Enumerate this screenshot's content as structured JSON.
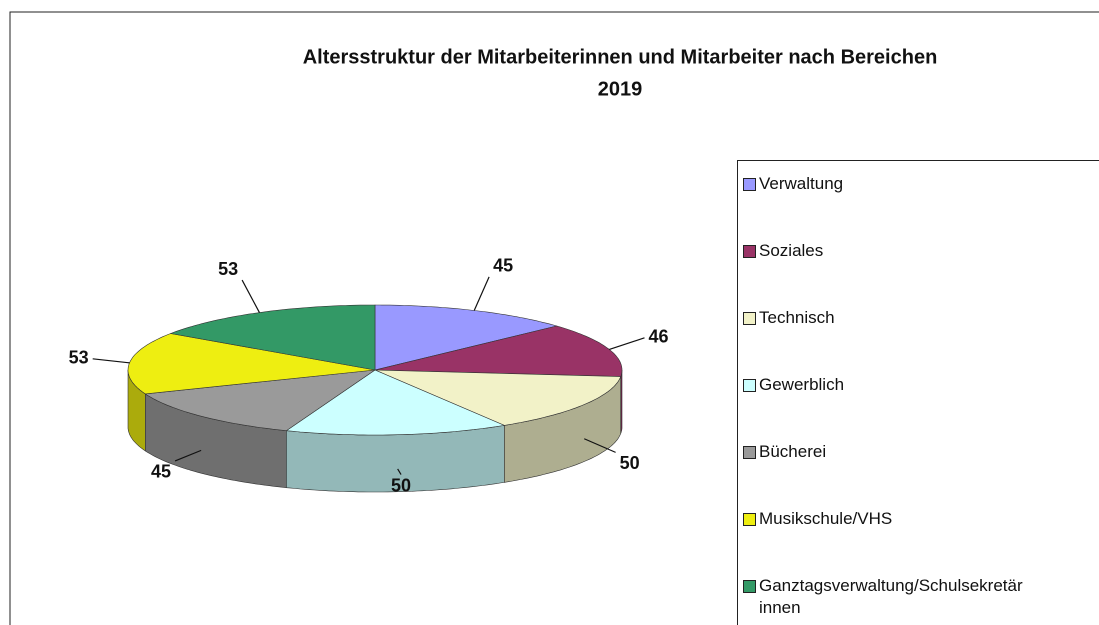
{
  "chart_data": {
    "type": "pie3d",
    "title": "Altersstruktur der Mitarbeiterinnen und Mitarbeiter nach Bereichen",
    "subtitle": "2019",
    "categories": [
      "Verwaltung",
      "Soziales",
      "Technisch",
      "Gewerblich",
      "Bücherei",
      "Musikschule/VHS",
      "Ganztagsverwaltung/Schulsekretär innen"
    ],
    "values": [
      45,
      46,
      50,
      50,
      45,
      53,
      53
    ],
    "colors": [
      "#9999ff",
      "#993366",
      "#f2f2c8",
      "#ccffff",
      "#9a9a9a",
      "#eeee11",
      "#339966"
    ],
    "legend": "right"
  }
}
